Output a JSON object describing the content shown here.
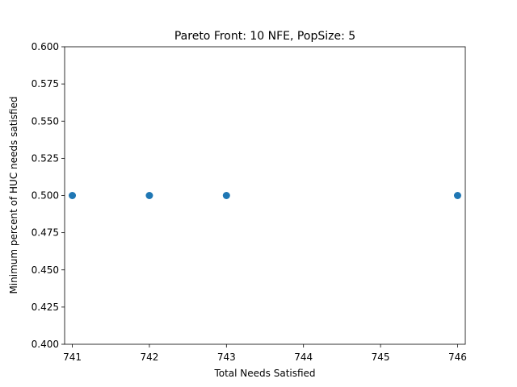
{
  "chart_data": {
    "type": "scatter",
    "title": "Pareto Front: 10 NFE, PopSize: 5",
    "xlabel": "Total Needs Satisfied",
    "ylabel": "Minimum percent of HUC needs satisfied",
    "xlim": [
      740.9,
      746.1
    ],
    "ylim": [
      0.4,
      0.6
    ],
    "xticks": [
      741,
      742,
      743,
      744,
      745,
      746
    ],
    "yticks": [
      0.4,
      0.425,
      0.45,
      0.475,
      0.5,
      0.525,
      0.55,
      0.575,
      0.6
    ],
    "xtick_labels": [
      "741",
      "742",
      "743",
      "744",
      "745",
      "746"
    ],
    "ytick_labels": [
      "0.400",
      "0.425",
      "0.450",
      "0.475",
      "0.500",
      "0.525",
      "0.550",
      "0.575",
      "0.600"
    ],
    "grid": false,
    "series": [
      {
        "color": "#1f77b4",
        "x": [
          741,
          742,
          743,
          746
        ],
        "y": [
          0.5,
          0.5,
          0.5,
          0.5
        ]
      }
    ]
  }
}
